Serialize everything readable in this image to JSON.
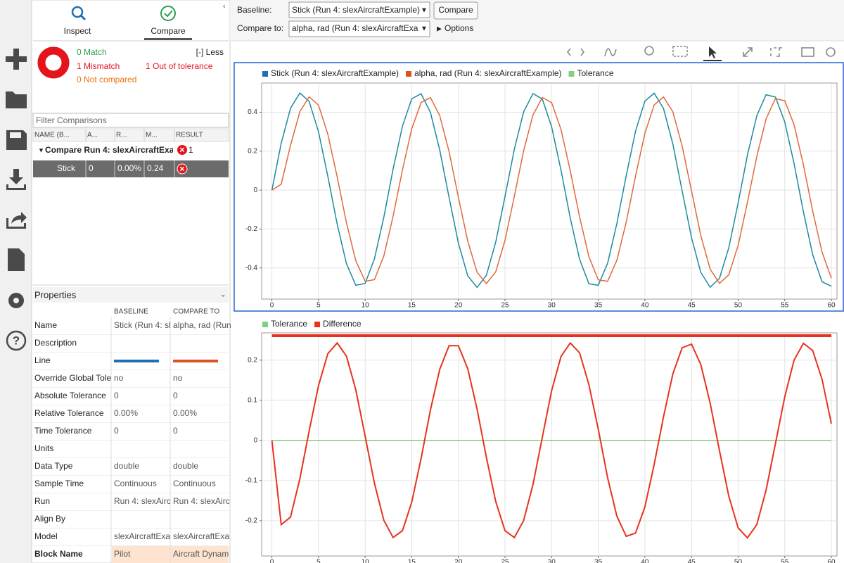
{
  "tabs": [
    "Inspect",
    "Compare"
  ],
  "summary": {
    "match": "0 Match",
    "mismatch": "1 Mismatch",
    "out_of_tolerance": "1 Out of tolerance",
    "not_compared": "0 Not compared",
    "toggle": "[-] Less"
  },
  "filter_placeholder": "Filter Comparisons",
  "table": {
    "headers": [
      "NAME (B...",
      "A...",
      "R...",
      "M...",
      "RESULT"
    ],
    "group": {
      "label": "Compare Run 4: slexAircraftExa",
      "count": "1"
    },
    "rows": [
      [
        "Stick",
        "0",
        "0.00%",
        "0.24"
      ]
    ]
  },
  "properties": {
    "title": "Properties",
    "headers": [
      "BASELINE",
      "COMPARE TO"
    ],
    "rows": [
      {
        "label": "Name",
        "baseline": "Stick (Run 4: sl",
        "compare": "alpha, rad (Run"
      },
      {
        "label": "Description"
      },
      {
        "label": "Line"
      },
      {
        "label": "Override Global Tole",
        "baseline": "no",
        "compare": "no"
      },
      {
        "label": "Absolute Tolerance",
        "baseline": "0",
        "compare": "0"
      },
      {
        "label": "Relative Tolerance",
        "baseline": "0.00%",
        "compare": "0.00%"
      },
      {
        "label": "Time Tolerance",
        "baseline": "0",
        "compare": "0"
      },
      {
        "label": "Units"
      },
      {
        "label": "Data Type",
        "baseline": "double",
        "compare": "double"
      },
      {
        "label": "Sample Time",
        "baseline": "Continuous",
        "compare": "Continuous"
      },
      {
        "label": "Run",
        "baseline": "Run 4: slexAirc",
        "compare": "Run 4: slexAirc"
      },
      {
        "label": "Align By"
      },
      {
        "label": "Model",
        "baseline": "slexAircraftExa",
        "compare": "slexAircraftExa"
      },
      {
        "label": "Block Name",
        "baseline": "Pilot",
        "compare": "Aircraft Dynam"
      }
    ]
  },
  "toolbar": {
    "baseline_label": "Baseline:",
    "baseline_value": "Stick (Run 4: slexAircraftExample)",
    "compare_button": "Compare",
    "compare_to_label": "Compare to:",
    "compare_to_value": "alpha, rad (Run 4: slexAircraftExa",
    "options": "Options"
  },
  "chart_data": [
    {
      "type": "line",
      "x": [
        0,
        1,
        2,
        3,
        4,
        5,
        6,
        7,
        8,
        9,
        10,
        11,
        12,
        13,
        14,
        15,
        16,
        17,
        18,
        19,
        20,
        21,
        22,
        23,
        24,
        25,
        26,
        27,
        28,
        29,
        30,
        31,
        32,
        33,
        34,
        35,
        36,
        37,
        38,
        39,
        40,
        41,
        42,
        43,
        44,
        45,
        46,
        47,
        48,
        49,
        50,
        51,
        52,
        53,
        54,
        55,
        56,
        57,
        58,
        59,
        60
      ],
      "series": [
        {
          "name": "Stick (Run 4: slexAircraftExample)",
          "color": "#1c8a9e",
          "values": [
            0,
            0.24,
            0.421,
            0.499,
            0.455,
            0.299,
            0.071,
            -0.175,
            -0.378,
            -0.489,
            -0.479,
            -0.353,
            -0.14,
            0.108,
            0.328,
            0.469,
            0.495,
            0.399,
            0.206,
            -0.038,
            -0.272,
            -0.44,
            -0.5,
            -0.438,
            -0.268,
            -0.033,
            0.21,
            0.402,
            0.496,
            0.468,
            0.325,
            0.103,
            -0.144,
            -0.356,
            -0.481,
            -0.489,
            -0.376,
            -0.171,
            0.075,
            0.303,
            0.457,
            0.498,
            0.419,
            0.236,
            -0.005,
            -0.244,
            -0.423,
            -0.499,
            -0.453,
            -0.296,
            -0.066,
            0.18,
            0.382,
            0.49,
            0.478,
            0.35,
            0.136,
            -0.112,
            -0.332,
            -0.471,
            -0.494
          ]
        },
        {
          "name": "alpha, rad (Run 4: slexAircraftExample)",
          "color": "#e0693a",
          "values": [
            0,
            0.03,
            0.23,
            0.404,
            0.479,
            0.436,
            0.287,
            0.068,
            -0.168,
            -0.363,
            -0.469,
            -0.46,
            -0.339,
            -0.134,
            0.103,
            0.315,
            0.45,
            0.475,
            0.383,
            0.198,
            -0.036,
            -0.261,
            -0.422,
            -0.48,
            -0.42,
            -0.258,
            -0.032,
            0.202,
            0.386,
            0.476,
            0.449,
            0.312,
            0.099,
            -0.138,
            -0.342,
            -0.461,
            -0.469,
            -0.36,
            -0.164,
            0.072,
            0.291,
            0.438,
            0.478,
            0.402,
            0.226,
            -0.004,
            -0.234,
            -0.406,
            -0.479,
            -0.435,
            -0.284,
            -0.063,
            0.172,
            0.366,
            0.47,
            0.459,
            0.336,
            0.13,
            -0.108,
            -0.319,
            -0.452
          ]
        }
      ],
      "legend_only": [
        {
          "name": "Tolerance",
          "color": "#7fd07f"
        }
      ],
      "legend_colors": [
        "#1f6fb4",
        "#d9541e"
      ],
      "xlim": [
        -1.1,
        60.6
      ],
      "ylim": [
        -0.56,
        0.55
      ],
      "xticks": [
        0,
        5,
        10,
        15,
        20,
        25,
        30,
        35,
        40,
        45,
        50,
        55,
        60
      ],
      "yticks": [
        -0.4,
        -0.2,
        0,
        0.2,
        0.4
      ],
      "grid": true
    },
    {
      "type": "line",
      "x": [
        0,
        1,
        2,
        3,
        4,
        5,
        6,
        7,
        8,
        9,
        10,
        11,
        12,
        13,
        14,
        15,
        16,
        17,
        18,
        19,
        20,
        21,
        22,
        23,
        24,
        25,
        26,
        27,
        28,
        29,
        30,
        31,
        32,
        33,
        34,
        35,
        36,
        37,
        38,
        39,
        40,
        41,
        42,
        43,
        44,
        45,
        46,
        47,
        48,
        49,
        50,
        51,
        52,
        53,
        54,
        55,
        56,
        57,
        58,
        59,
        60
      ],
      "series": [
        {
          "name": "Tolerance",
          "color": "#7fd07f",
          "x": [
            0,
            60
          ],
          "values": [
            0,
            0
          ]
        },
        {
          "name": "Difference",
          "color": "#e8321e",
          "values": [
            0,
            -0.21,
            -0.191,
            -0.095,
            0.024,
            0.137,
            0.216,
            0.243,
            0.21,
            0.126,
            0.01,
            -0.107,
            -0.199,
            -0.242,
            -0.225,
            -0.154,
            -0.045,
            0.076,
            0.177,
            0.236,
            0.236,
            0.179,
            0.078,
            -0.042,
            -0.152,
            -0.225,
            -0.242,
            -0.2,
            -0.11,
            0.008,
            0.124,
            0.209,
            0.243,
            0.218,
            0.139,
            0.028,
            -0.093,
            -0.189,
            -0.239,
            -0.231,
            -0.166,
            -0.06,
            0.059,
            0.166,
            0.231,
            0.24,
            0.189,
            0.093,
            -0.026,
            -0.139,
            -0.218,
            -0.243,
            -0.21,
            -0.124,
            -0.008,
            0.109,
            0.2,
            0.242,
            0.224,
            0.152,
            0.042
          ]
        }
      ],
      "xlim": [
        -1.1,
        60.6
      ],
      "ylim": [
        -0.288,
        0.268
      ],
      "xticks": [
        0,
        5,
        10,
        15,
        20,
        25,
        30,
        35,
        40,
        45,
        50,
        55,
        60
      ],
      "yticks": [
        -0.2,
        -0.1,
        0,
        0.1,
        0.2
      ],
      "grid": true
    }
  ]
}
